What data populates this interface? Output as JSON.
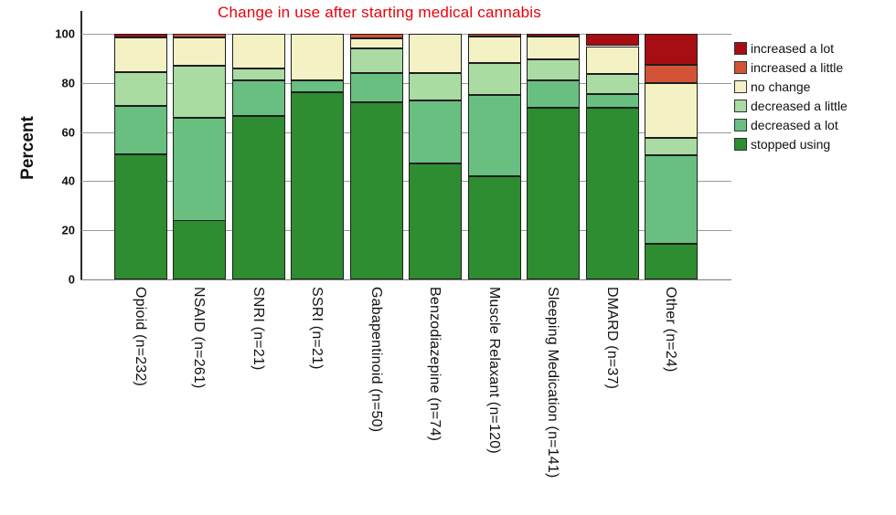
{
  "chart_data": {
    "type": "bar",
    "stacked": true,
    "title": "Change in use after starting medical cannabis",
    "title_color": "#e8000b",
    "ylabel": "Percent",
    "ylim": [
      0,
      100
    ],
    "yticks": [
      0,
      20,
      40,
      60,
      80,
      100
    ],
    "grid": true,
    "legend_position": "right",
    "categories": [
      "Opioid (n=232)",
      "NSAID (n=261)",
      "SNRI (n=21)",
      "SSRI (n=21)",
      "Gabapentinoid (n=50)",
      "Benzodiazepine (n=74)",
      "Muscle Relaxant (n=120)",
      "Sleeping Medication (n=141)",
      "DMARD (n=37)",
      "Other (n=24)"
    ],
    "series": [
      {
        "name": "stopped using",
        "color": "#2e8c31",
        "values": [
          51.0,
          24.0,
          66.7,
          76.2,
          72.0,
          47.3,
          42.0,
          70.0,
          70.0,
          14.5
        ]
      },
      {
        "name": "decreased a lot",
        "color": "#68bf80",
        "values": [
          19.5,
          42.0,
          14.3,
          4.8,
          12.0,
          25.7,
          33.0,
          11.0,
          5.5,
          36.0
        ]
      },
      {
        "name": "decreased a little",
        "color": "#a9dba3",
        "values": [
          14.0,
          21.0,
          4.8,
          0.0,
          10.0,
          11.0,
          13.0,
          8.5,
          8.0,
          7.0
        ]
      },
      {
        "name": "no change",
        "color": "#f4f2c5",
        "values": [
          14.0,
          11.5,
          14.2,
          19.0,
          4.0,
          16.0,
          11.0,
          9.5,
          11.5,
          22.5
        ]
      },
      {
        "name": "increased a little",
        "color": "#d25335",
        "values": [
          0.0,
          1.5,
          0.0,
          0.0,
          2.0,
          0.0,
          1.0,
          0.0,
          0.0,
          7.5
        ]
      },
      {
        "name": "increased a lot",
        "color": "#a60e13",
        "values": [
          1.5,
          0.0,
          0.0,
          0.0,
          0.0,
          0.0,
          0.0,
          1.0,
          5.0,
          12.5
        ]
      }
    ],
    "legend": [
      "increased a lot",
      "increased a little",
      "no change",
      "decreased a little",
      "decreased a lot",
      "stopped using"
    ]
  }
}
